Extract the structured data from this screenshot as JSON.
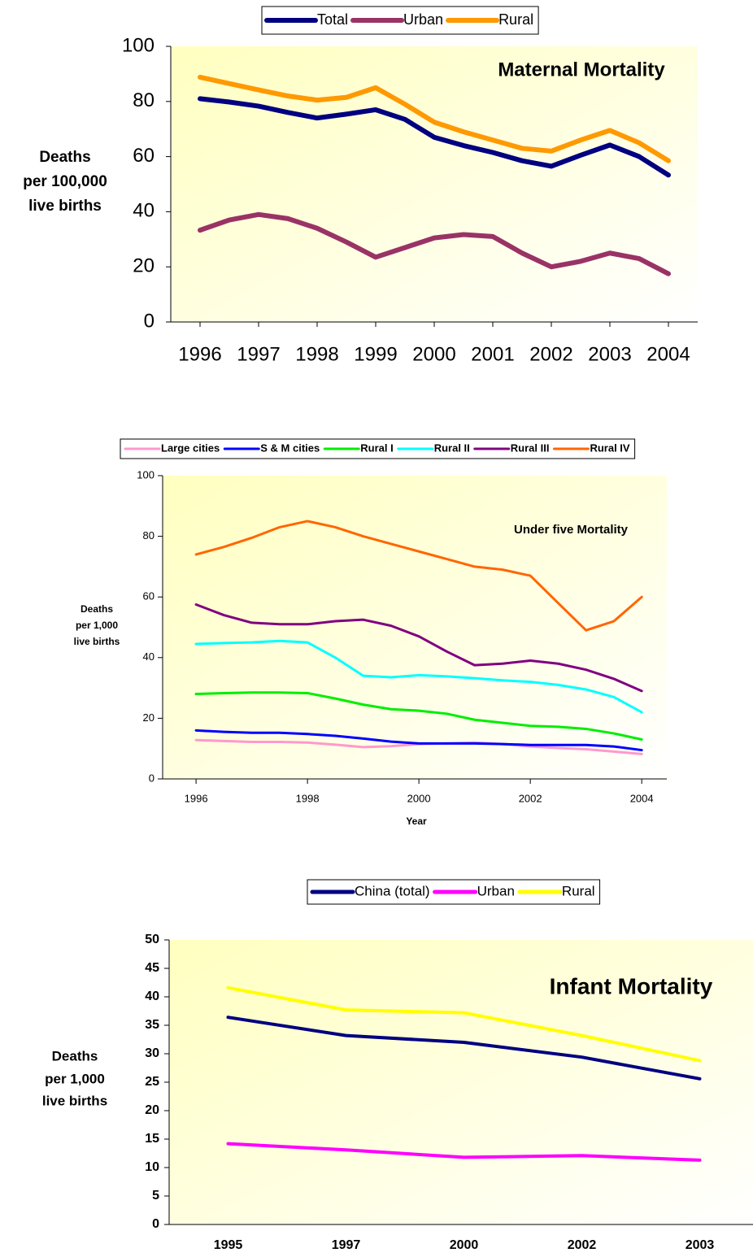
{
  "chart_data": [
    {
      "type": "line",
      "title": "Maternal Mortality",
      "y_label": [
        "Deaths",
        "per 100,000",
        "live births"
      ],
      "x": [
        1996,
        1996.5,
        1997,
        1997.5,
        1998,
        1998.5,
        1999,
        1999.5,
        2000,
        2000.5,
        2001,
        2001.5,
        2002,
        2002.5,
        2003,
        2003.5,
        2004
      ],
      "xlim": [
        1995.5,
        2004.5
      ],
      "xticks": [
        1996,
        1997,
        1998,
        1999,
        2000,
        2001,
        2002,
        2003,
        2004
      ],
      "ylim": [
        0,
        100
      ],
      "yticks": [
        0,
        20,
        40,
        60,
        80,
        100
      ],
      "grid": false,
      "legend": "top",
      "series": [
        {
          "name": "Total",
          "color": "#000080",
          "values": [
            81,
            79.8,
            78.3,
            76,
            74,
            75.4,
            77,
            73.5,
            67,
            64,
            61.5,
            58.5,
            56.5,
            60.5,
            64.2,
            60,
            53.3
          ]
        },
        {
          "name": "Urban",
          "color": "#993366",
          "values": [
            33.3,
            37,
            39,
            37.5,
            34,
            29,
            23.5,
            27,
            30.5,
            31.7,
            31,
            25,
            20,
            22,
            25,
            23,
            17.5
          ]
        },
        {
          "name": "Rural",
          "color": "#FF9900",
          "values": [
            88.8,
            86.5,
            84.2,
            82,
            80.5,
            81.5,
            85,
            79,
            72.5,
            69,
            66,
            63,
            62,
            66,
            69.5,
            65,
            58.5
          ]
        }
      ]
    },
    {
      "type": "line",
      "title": "Under five Mortality",
      "y_label": [
        "Deaths",
        "per 1,000",
        "live births"
      ],
      "x_label": "Year",
      "x": [
        1996,
        1996.5,
        1997,
        1997.5,
        1998,
        1998.5,
        1999,
        1999.5,
        2000,
        2000.5,
        2001,
        2001.5,
        2002,
        2002.5,
        2003,
        2003.5,
        2004
      ],
      "xlim": [
        1995.4,
        2004.45
      ],
      "xticks": [
        1996,
        1998,
        2000,
        2002,
        2004
      ],
      "ylim": [
        0,
        100
      ],
      "yticks": [
        0,
        20,
        40,
        60,
        80,
        100
      ],
      "grid": false,
      "legend": "top",
      "series": [
        {
          "name": "Large cities",
          "color": "#FF99CC",
          "values": [
            12.8,
            12.5,
            12.2,
            12.2,
            12,
            11.3,
            10.5,
            10.8,
            11.5,
            11.7,
            12,
            11.5,
            10.7,
            10.2,
            9.8,
            9,
            8.2
          ]
        },
        {
          "name": "S & M cities",
          "color": "#0000FF",
          "values": [
            16,
            15.5,
            15.2,
            15.2,
            14.8,
            14.2,
            13.3,
            12.3,
            11.7,
            11.7,
            11.7,
            11.5,
            11.2,
            11.2,
            11.2,
            10.7,
            9.5
          ]
        },
        {
          "name": "Rural I",
          "color": "#00EE00",
          "values": [
            28,
            28.3,
            28.5,
            28.5,
            28.3,
            26.5,
            24.5,
            23,
            22.5,
            21.5,
            19.5,
            18.5,
            17.5,
            17.2,
            16.5,
            15,
            13
          ]
        },
        {
          "name": "Rural II",
          "color": "#00FFFF",
          "values": [
            44.5,
            44.8,
            45,
            45.5,
            45,
            40,
            34,
            33.5,
            34.2,
            33.8,
            33.2,
            32.5,
            32,
            31,
            29.5,
            27,
            22
          ]
        },
        {
          "name": "Rural III",
          "color": "#800080",
          "values": [
            57.5,
            54,
            51.5,
            51,
            51,
            52,
            52.5,
            50.5,
            47,
            42,
            37.5,
            38,
            39,
            38,
            36,
            33,
            29
          ]
        },
        {
          "name": "Rural IV",
          "color": "#FF6600",
          "values": [
            74,
            76.5,
            79.5,
            83,
            85,
            83,
            80,
            77.5,
            75,
            72.5,
            70,
            69,
            67,
            58,
            49,
            52,
            60
          ]
        }
      ]
    },
    {
      "type": "line",
      "title": "Infant Mortality",
      "y_label": [
        "Deaths",
        "per 1,000",
        "live births"
      ],
      "categories": [
        "1995",
        "1997",
        "2000",
        "2002",
        "2003"
      ],
      "ylim": [
        0,
        50
      ],
      "yticks": [
        0,
        5,
        10,
        15,
        20,
        25,
        30,
        35,
        40,
        45,
        50
      ],
      "grid": false,
      "legend": "top",
      "series": [
        {
          "name": "China (total)",
          "color": "#000080",
          "values": [
            36.4,
            33.2,
            32,
            29.4,
            25.6
          ]
        },
        {
          "name": "Urban",
          "color": "#FF00FF",
          "values": [
            14.2,
            13.1,
            11.8,
            12.1,
            11.3
          ]
        },
        {
          "name": "Rural",
          "color": "#FFFF00",
          "values": [
            41.6,
            37.7,
            37.2,
            33.2,
            28.8
          ]
        }
      ]
    }
  ]
}
